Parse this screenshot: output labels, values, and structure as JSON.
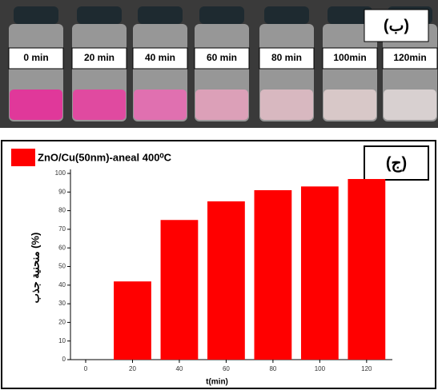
{
  "photo": {
    "label": "(ب)",
    "vial_labels": [
      "0 min",
      "20 min",
      "40 min",
      "60 min",
      "80 min",
      "100min",
      "120min"
    ]
  },
  "chart_data": {
    "type": "bar",
    "panel_label": "(ج)",
    "x_label": "t(min)",
    "y_label": "منحنية جذب (%)",
    "x": [
      0,
      20,
      40,
      60,
      80,
      100,
      120
    ],
    "series": [
      {
        "name": "ZnO/Cu(50nm)-aneal 400⁰C",
        "color": "#ff0000",
        "values": [
          0,
          42,
          75,
          85,
          91,
          93,
          97
        ]
      }
    ],
    "xlim": [
      -6.5,
      131
    ],
    "xticks": [
      0,
      20,
      40,
      60,
      80,
      100,
      120
    ],
    "ylim": [
      0,
      100
    ],
    "yticks": [
      0,
      10,
      20,
      30,
      40,
      50,
      60,
      70,
      80,
      90,
      100
    ],
    "bar_width": 16
  }
}
